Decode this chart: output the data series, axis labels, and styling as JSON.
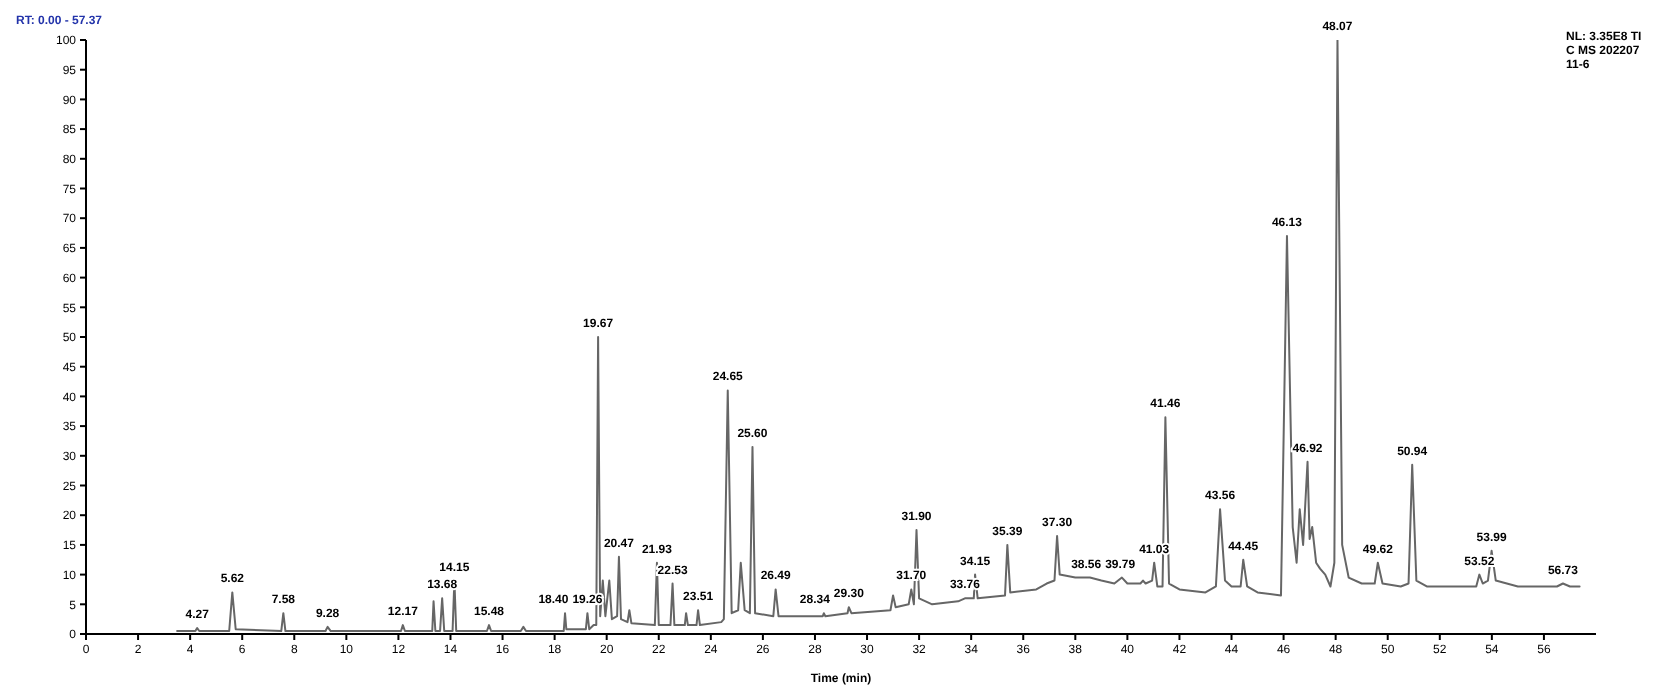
{
  "chart_data": {
    "type": "line",
    "xlabel": "Time (min)",
    "x": [
      3.5,
      4.2,
      4.27,
      4.35,
      5.5,
      5.62,
      5.75,
      7.5,
      7.58,
      7.66,
      9.2,
      9.28,
      9.4,
      12.1,
      12.17,
      12.25,
      13.3,
      13.35,
      13.42,
      13.6,
      13.68,
      13.76,
      14.08,
      14.15,
      14.22,
      15.4,
      15.48,
      15.56,
      16.7,
      16.8,
      16.9,
      18.35,
      18.4,
      18.45,
      19.2,
      19.26,
      19.33,
      19.5,
      19.6,
      19.67,
      19.75,
      19.85,
      19.95,
      20.1,
      20.2,
      20.4,
      20.47,
      20.55,
      20.8,
      20.87,
      20.95,
      21.85,
      21.93,
      22.0,
      22.45,
      22.53,
      22.6,
      23.0,
      23.05,
      23.12,
      23.45,
      23.51,
      23.58,
      24.4,
      24.5,
      24.65,
      24.8,
      25.05,
      25.15,
      25.3,
      25.5,
      25.6,
      25.7,
      26.4,
      26.49,
      26.6,
      28.3,
      28.34,
      28.4,
      29.25,
      29.3,
      29.4,
      30.9,
      31.0,
      31.1,
      31.6,
      31.7,
      31.8,
      31.9,
      32.0,
      32.5,
      33.5,
      33.76,
      34.1,
      34.15,
      34.25,
      35.3,
      35.39,
      35.5,
      36.5,
      36.9,
      37.2,
      37.3,
      37.4,
      38.0,
      38.56,
      39.0,
      39.5,
      39.79,
      40.0,
      40.5,
      40.6,
      40.7,
      40.95,
      41.03,
      41.15,
      41.35,
      41.46,
      41.6,
      42.0,
      43.0,
      43.4,
      43.56,
      43.75,
      44.0,
      44.35,
      44.45,
      44.6,
      45.0,
      45.9,
      46.13,
      46.35,
      46.5,
      46.62,
      46.75,
      46.92,
      47.0,
      47.1,
      47.25,
      47.4,
      47.6,
      47.8,
      47.95,
      48.07,
      48.25,
      48.5,
      49.0,
      49.5,
      49.62,
      49.8,
      50.5,
      50.8,
      50.94,
      51.1,
      51.5,
      52.5,
      53.4,
      53.52,
      53.65,
      53.85,
      53.99,
      54.15,
      55.0,
      56.5,
      56.73,
      57.0,
      57.37
    ],
    "series": [
      {
        "color": "#666666",
        "values": [
          0.5,
          0.5,
          1,
          0.5,
          0.5,
          7,
          0.8,
          0.5,
          3.5,
          0.5,
          0.5,
          1.2,
          0.5,
          0.5,
          1.5,
          0.5,
          0.5,
          5.5,
          0.5,
          0.5,
          6,
          0.5,
          0.5,
          9,
          0.5,
          0.5,
          1.5,
          0.5,
          0.5,
          1.2,
          0.5,
          0.5,
          3.5,
          0.8,
          0.8,
          3.5,
          0.8,
          1.5,
          1.5,
          50,
          3,
          9,
          3,
          9,
          2.5,
          3,
          13,
          2.5,
          2,
          4,
          1.8,
          1.5,
          12,
          1.5,
          1.5,
          8.5,
          1.5,
          1.5,
          3.5,
          1.5,
          1.5,
          4,
          1.5,
          2,
          2.5,
          41,
          3.5,
          4,
          12,
          4,
          3.5,
          31.5,
          3.5,
          3,
          7.5,
          3,
          3,
          3.5,
          3,
          3.5,
          4.5,
          3.5,
          4,
          6.5,
          4.5,
          5,
          7.5,
          5,
          17.5,
          6,
          5,
          5.5,
          6,
          6,
          10,
          6,
          6.5,
          15,
          7,
          7.5,
          8.5,
          9,
          16.5,
          10,
          9.5,
          9.5,
          9,
          8.5,
          9.5,
          8.5,
          8.5,
          9,
          8.5,
          9,
          12,
          8,
          8,
          36.5,
          8.5,
          7.5,
          7,
          8,
          21,
          9,
          8,
          8,
          12.5,
          8,
          7,
          6.5,
          67,
          18,
          12,
          21,
          15,
          29,
          16,
          18,
          12,
          11,
          10,
          8,
          12,
          100,
          15,
          9.5,
          8.5,
          8.5,
          12,
          8.5,
          8,
          8.5,
          28.5,
          9,
          8,
          8,
          8,
          10,
          8.5,
          9,
          14,
          9,
          8,
          8,
          8.5,
          8,
          8
        ]
      }
    ],
    "xlim": [
      0,
      58
    ],
    "xticks": [
      0,
      2,
      4,
      6,
      8,
      10,
      12,
      14,
      16,
      18,
      20,
      22,
      24,
      26,
      28,
      30,
      32,
      34,
      36,
      38,
      40,
      42,
      44,
      46,
      48,
      50,
      52,
      54,
      56
    ],
    "ylim": [
      0,
      100
    ],
    "yticks": [
      0,
      5,
      10,
      15,
      20,
      25,
      30,
      35,
      40,
      45,
      50,
      55,
      60,
      65,
      70,
      75,
      80,
      85,
      90,
      95,
      100
    ],
    "annotations": [
      "RT: 0.00 - 57.37",
      "NL: 3.35E8 TIC MS 20220711-6",
      {
        "text": "4.27",
        "x": 4.27,
        "y": 1
      },
      {
        "text": "5.62",
        "x": 5.62,
        "y": 7
      },
      {
        "text": "7.58",
        "x": 7.58,
        "y": 3.5
      },
      {
        "text": "9.28",
        "x": 9.28,
        "y": 1.2
      },
      {
        "text": "12.17",
        "x": 12.17,
        "y": 1.5
      },
      {
        "text": "13.68",
        "x": 13.68,
        "y": 6
      },
      {
        "text": "14.15",
        "x": 14.15,
        "y": 9
      },
      {
        "text": "15.48",
        "x": 15.48,
        "y": 1.5
      },
      {
        "text": "18.40",
        "x": 18.4,
        "y": 3.5
      },
      {
        "text": "19.26",
        "x": 19.26,
        "y": 3.5
      },
      {
        "text": "19.67",
        "x": 19.67,
        "y": 50
      },
      {
        "text": "20.47",
        "x": 20.47,
        "y": 13
      },
      {
        "text": "21.93",
        "x": 21.93,
        "y": 12
      },
      {
        "text": "22.53",
        "x": 22.53,
        "y": 8.5
      },
      {
        "text": "23.51",
        "x": 23.51,
        "y": 4
      },
      {
        "text": "24.65",
        "x": 24.65,
        "y": 41
      },
      {
        "text": "25.60",
        "x": 25.6,
        "y": 31.5
      },
      {
        "text": "26.49",
        "x": 26.49,
        "y": 7.5
      },
      {
        "text": "28.34",
        "x": 28.34,
        "y": 3.5
      },
      {
        "text": "29.30",
        "x": 29.3,
        "y": 4.5
      },
      {
        "text": "31.70",
        "x": 31.7,
        "y": 7.5
      },
      {
        "text": "31.90",
        "x": 31.9,
        "y": 17.5
      },
      {
        "text": "33.76",
        "x": 33.76,
        "y": 6
      },
      {
        "text": "34.15",
        "x": 34.15,
        "y": 10
      },
      {
        "text": "35.39",
        "x": 35.39,
        "y": 15
      },
      {
        "text": "37.30",
        "x": 37.3,
        "y": 16.5
      },
      {
        "text": "38.56",
        "x": 38.56,
        "y": 9.5
      },
      {
        "text": "39.79",
        "x": 39.79,
        "y": 9.5
      },
      {
        "text": "41.03",
        "x": 41.03,
        "y": 12
      },
      {
        "text": "41.46",
        "x": 41.46,
        "y": 36.5
      },
      {
        "text": "43.56",
        "x": 43.56,
        "y": 21
      },
      {
        "text": "44.45",
        "x": 44.45,
        "y": 12.5
      },
      {
        "text": "46.13",
        "x": 46.13,
        "y": 67
      },
      {
        "text": "46.92",
        "x": 46.92,
        "y": 29
      },
      {
        "text": "48.07",
        "x": 48.07,
        "y": 100
      },
      {
        "text": "49.62",
        "x": 49.62,
        "y": 12
      },
      {
        "text": "50.94",
        "x": 50.94,
        "y": 28.5
      },
      {
        "text": "53.52",
        "x": 53.52,
        "y": 10
      },
      {
        "text": "53.99",
        "x": 53.99,
        "y": 14
      },
      {
        "text": "56.73",
        "x": 56.73,
        "y": 8.5
      }
    ]
  }
}
